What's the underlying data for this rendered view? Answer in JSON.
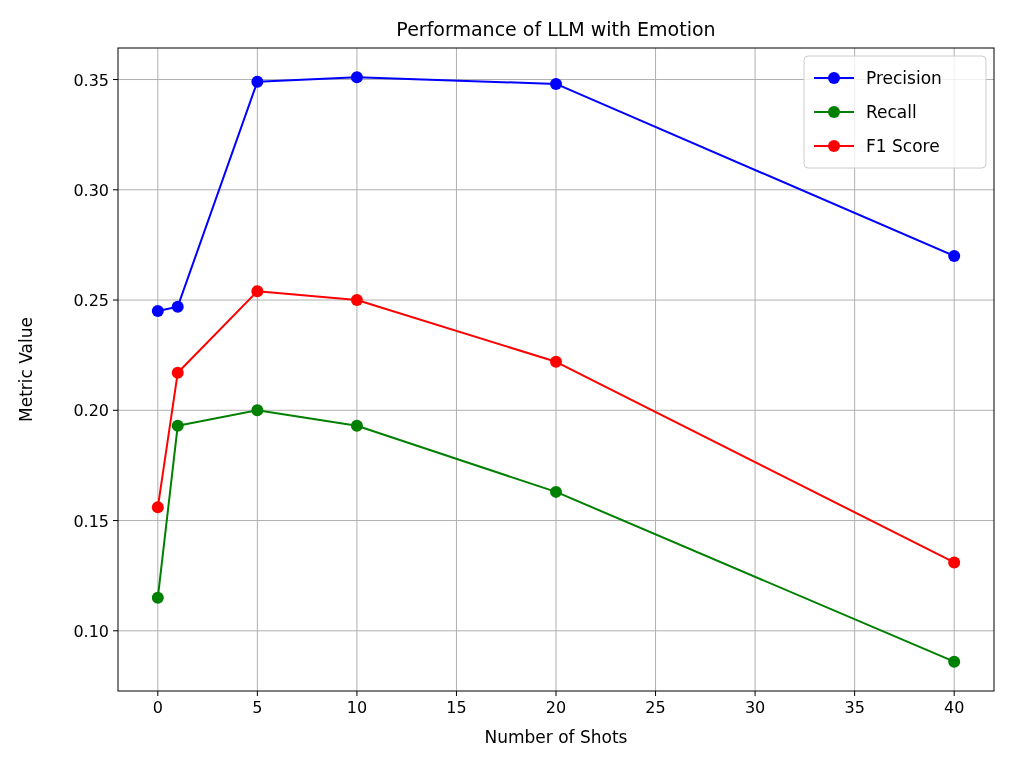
{
  "chart_data": {
    "type": "line",
    "title": "Performance of LLM with Emotion",
    "xlabel": "Number of Shots",
    "ylabel": "Metric Value",
    "x": [
      0,
      1,
      5,
      10,
      20,
      40
    ],
    "series": [
      {
        "name": "Precision",
        "color": "#0000ff",
        "values": [
          0.245,
          0.247,
          0.349,
          0.351,
          0.348,
          0.27
        ]
      },
      {
        "name": "Recall",
        "color": "#008000",
        "values": [
          0.115,
          0.193,
          0.2,
          0.193,
          0.163,
          0.086
        ]
      },
      {
        "name": "F1 Score",
        "color": "#ff0000",
        "values": [
          0.156,
          0.217,
          0.254,
          0.25,
          0.222,
          0.131
        ]
      }
    ],
    "xlim": [
      -2,
      42
    ],
    "xticks": [
      0,
      5,
      10,
      15,
      20,
      25,
      30,
      35,
      40
    ],
    "ylim": [
      0.0727,
      0.3643
    ],
    "yticks": [
      {
        "value": 0.1,
        "label": "0.10"
      },
      {
        "value": 0.15,
        "label": "0.15"
      },
      {
        "value": 0.2,
        "label": "0.20"
      },
      {
        "value": 0.25,
        "label": "0.25"
      },
      {
        "value": 0.3,
        "label": "0.30"
      },
      {
        "value": 0.35,
        "label": "0.35"
      }
    ],
    "grid": true,
    "legend": "top right",
    "marker": "circle",
    "line_style": "solid"
  }
}
